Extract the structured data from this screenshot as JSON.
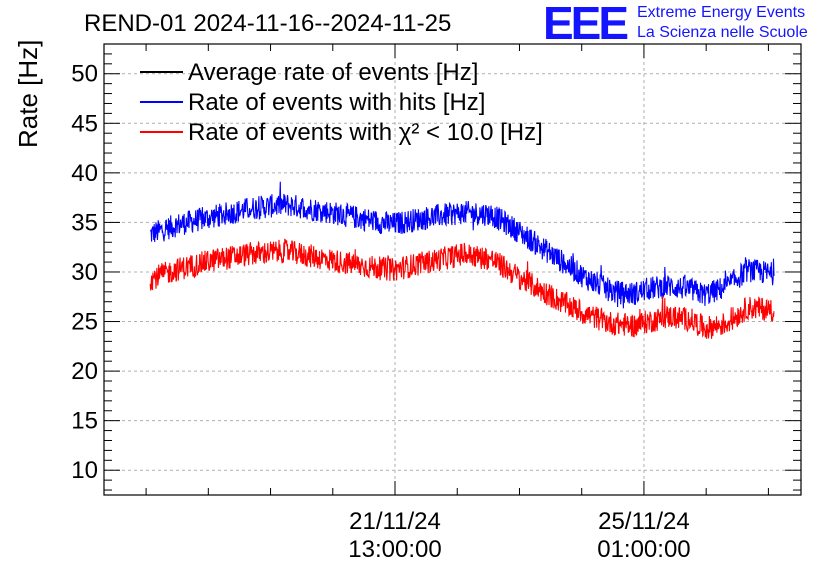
{
  "chart_data": {
    "type": "line",
    "title": "REND-01 2024-11-16--2024-11-25",
    "ylabel": "Rate [Hz]",
    "ylim": [
      7.5,
      53
    ],
    "yticks": [
      10,
      15,
      20,
      25,
      30,
      35,
      40,
      45,
      50
    ],
    "xlabel": "",
    "x_unit": "days since 2024-11-16 00:00",
    "xlim": [
      1.45,
      11.25
    ],
    "xticks": [
      {
        "x": 5.5417,
        "date": "21/11/24",
        "time": "13:00:00"
      },
      {
        "x": 9.0417,
        "date": "25/11/24",
        "time": "01:00:00"
      }
    ],
    "grid": true,
    "legend_position": "top-left",
    "series": [
      {
        "name": "Average rate of events [Hz]",
        "color": "#000000",
        "points": []
      },
      {
        "name": "Rate of events with hits [Hz]",
        "color": "#0000ff",
        "noise": 1.2,
        "points": [
          [
            2.1,
            33.8
          ],
          [
            2.5,
            34.8
          ],
          [
            3.0,
            35.6
          ],
          [
            3.5,
            36.4
          ],
          [
            4.0,
            36.8
          ],
          [
            4.5,
            36.2
          ],
          [
            5.0,
            35.5
          ],
          [
            5.5,
            34.8
          ],
          [
            6.0,
            35.5
          ],
          [
            6.5,
            36.0
          ],
          [
            6.9,
            35.8
          ],
          [
            7.3,
            34.0
          ],
          [
            7.8,
            31.5
          ],
          [
            8.2,
            29.5
          ],
          [
            8.6,
            28.0
          ],
          [
            8.9,
            27.8
          ],
          [
            9.1,
            28.3
          ],
          [
            9.4,
            28.6
          ],
          [
            9.7,
            28.2
          ],
          [
            9.9,
            27.7
          ],
          [
            10.2,
            28.5
          ],
          [
            10.5,
            30.2
          ],
          [
            10.87,
            29.8
          ]
        ]
      },
      {
        "name": "Rate of events with χ² < 10.0 [Hz]",
        "color": "#ff0000",
        "noise": 1.2,
        "points": [
          [
            2.1,
            29.3
          ],
          [
            2.5,
            30.3
          ],
          [
            3.0,
            31.2
          ],
          [
            3.5,
            31.8
          ],
          [
            4.0,
            32.1
          ],
          [
            4.5,
            31.4
          ],
          [
            5.0,
            30.7
          ],
          [
            5.5,
            30.2
          ],
          [
            6.0,
            31.0
          ],
          [
            6.5,
            31.8
          ],
          [
            6.9,
            31.3
          ],
          [
            7.3,
            29.4
          ],
          [
            7.8,
            27.3
          ],
          [
            8.2,
            25.8
          ],
          [
            8.6,
            24.8
          ],
          [
            8.9,
            24.6
          ],
          [
            9.1,
            25.0
          ],
          [
            9.4,
            25.5
          ],
          [
            9.7,
            25.2
          ],
          [
            9.9,
            24.3
          ],
          [
            10.2,
            24.8
          ],
          [
            10.5,
            26.4
          ],
          [
            10.87,
            26.2
          ]
        ]
      }
    ]
  },
  "logo": {
    "text": "EEE",
    "line1": "Extreme Energy Events",
    "line2": "La Scienza nelle Scuole",
    "color": "#1414ff"
  }
}
